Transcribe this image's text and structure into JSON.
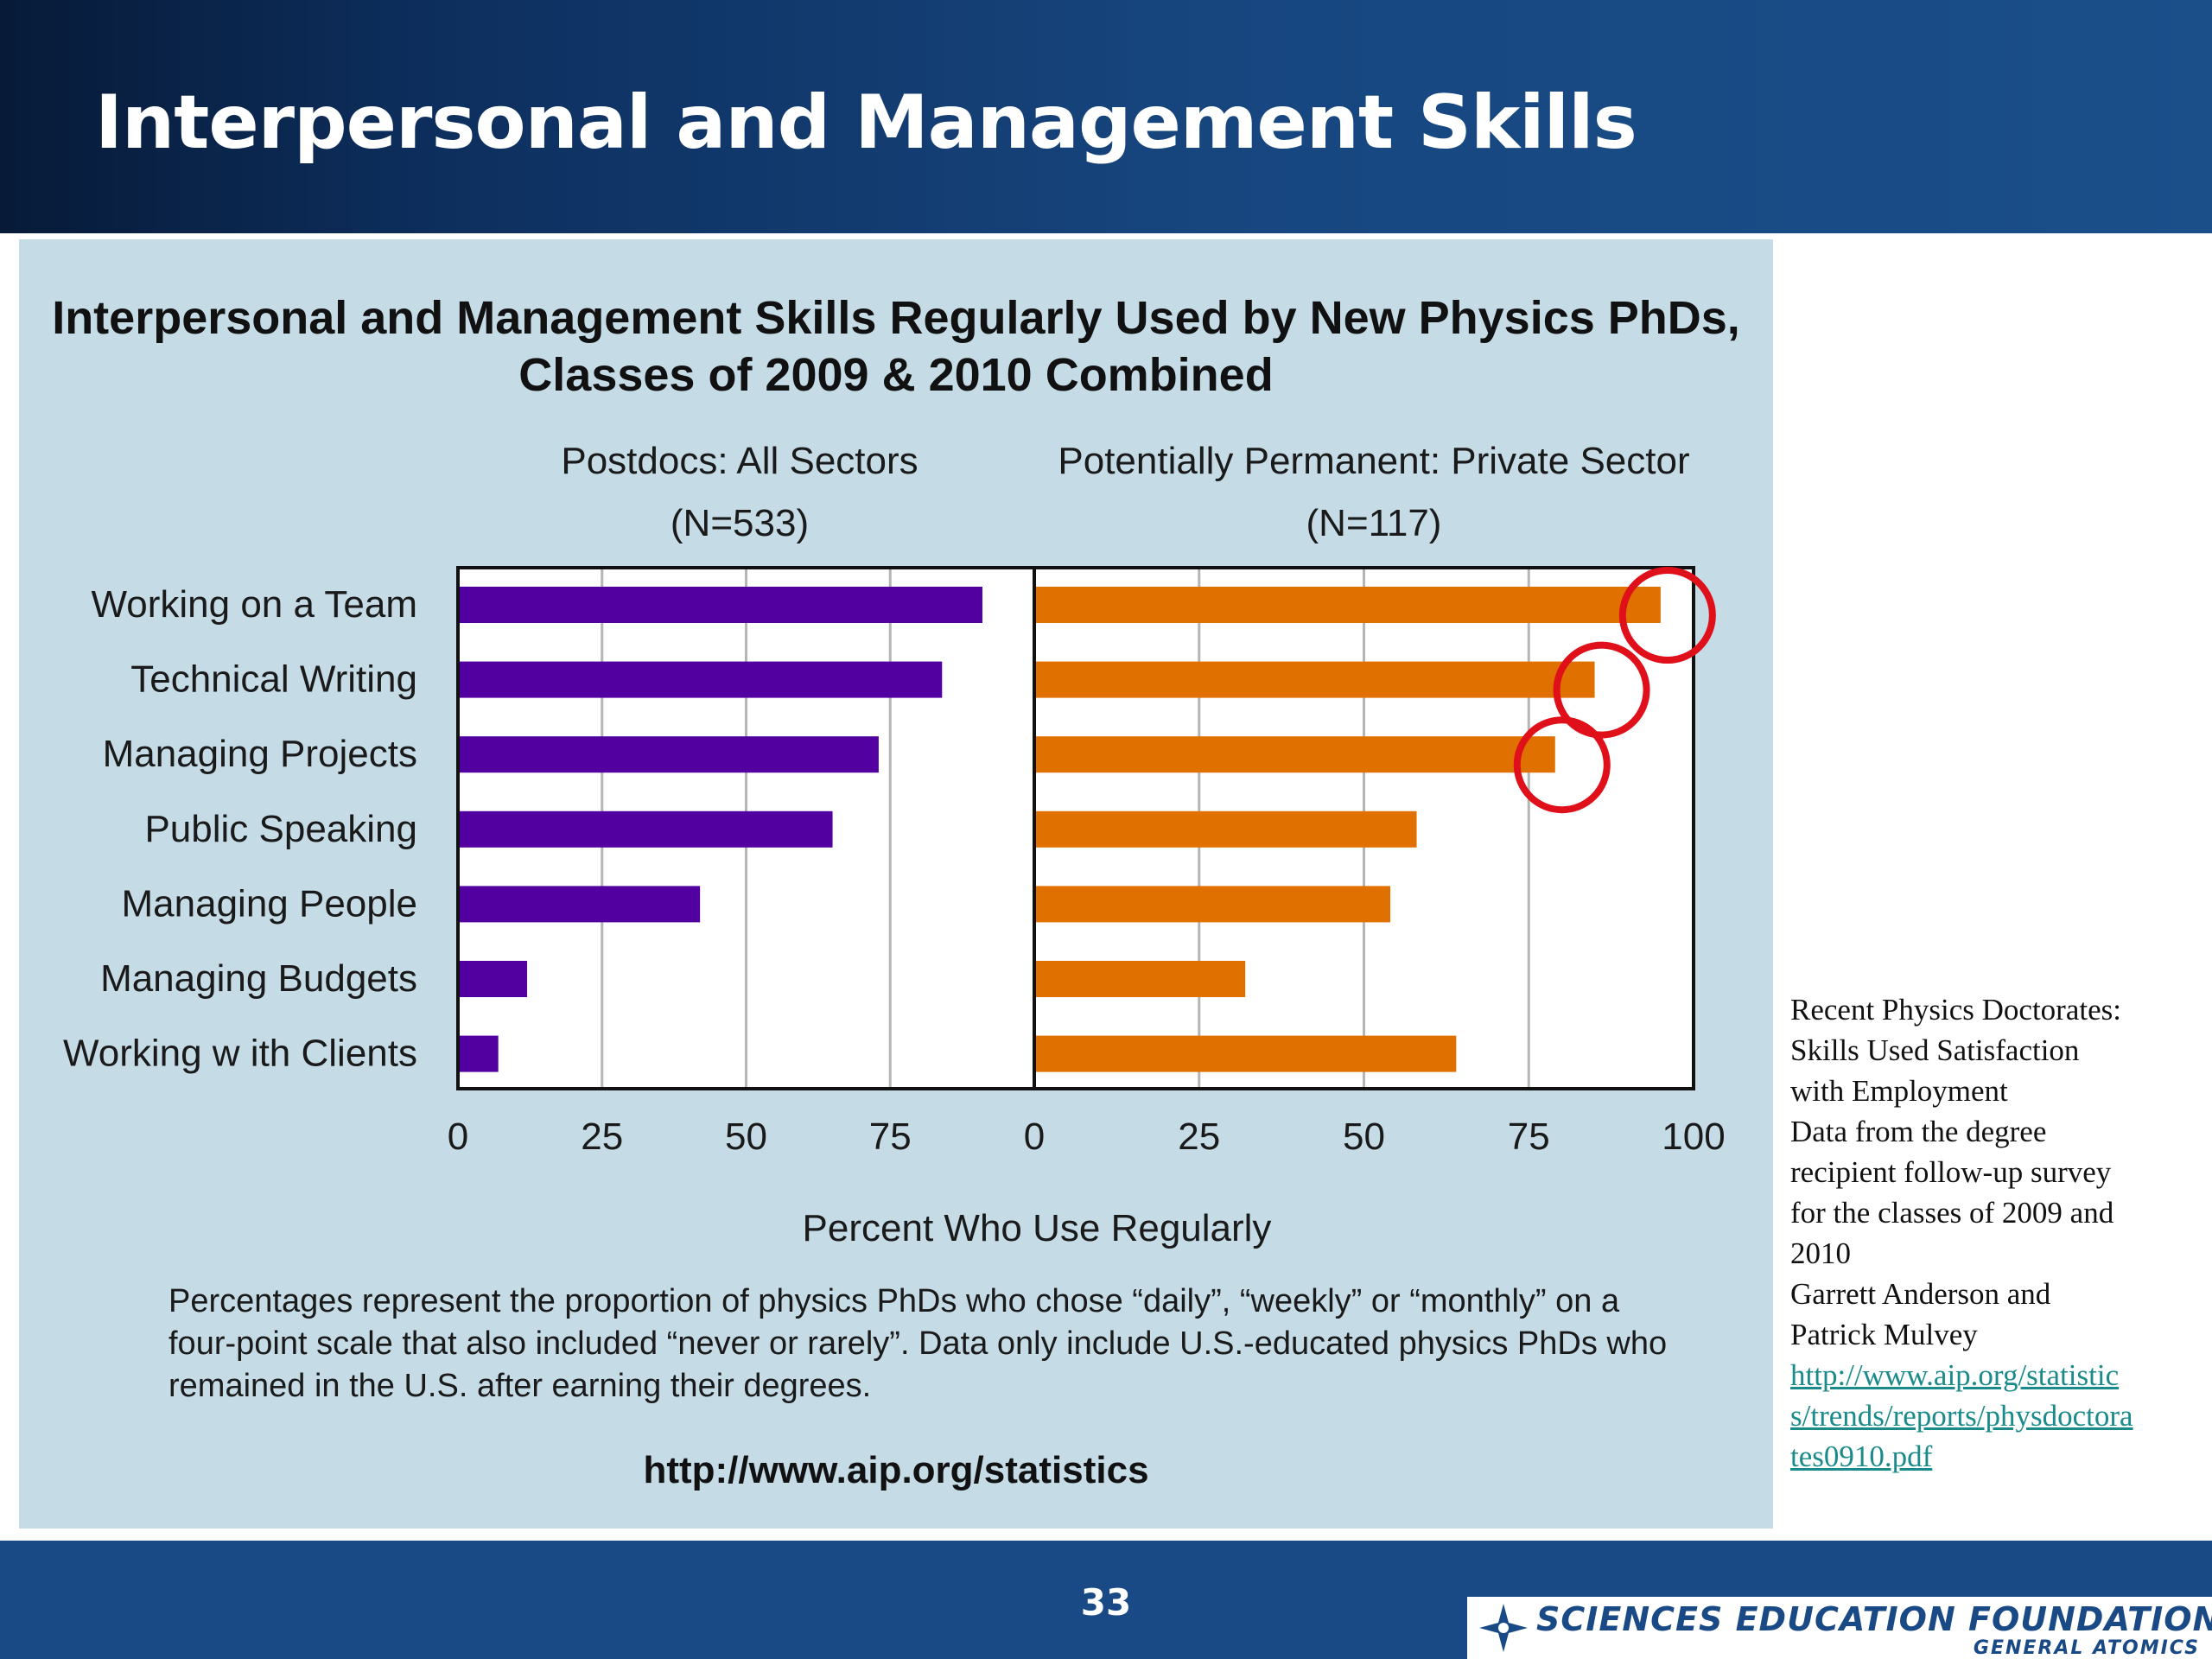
{
  "slide": {
    "title": "Interpersonal and Management Skills",
    "page_number": "33"
  },
  "chart_data": {
    "type": "bar",
    "orientation": "horizontal",
    "title": "Interpersonal and Management Skills Regularly Used by New Physics PhDs, Classes of 2009 & 2010 Combined",
    "xlabel": "Percent Who Use Regularly",
    "categories": [
      "Working on a Team",
      "Technical Writing",
      "Managing Projects",
      "Public Speaking",
      "Managing People",
      "Managing Budgets",
      "Working w ith Clients"
    ],
    "panels": [
      {
        "name": "Postdocs: All Sectors",
        "n_label": "(N=533)",
        "color": "#5200a0",
        "xlim": [
          0,
          100
        ],
        "xticks": [
          0,
          25,
          50,
          75
        ],
        "values": [
          91,
          84,
          73,
          65,
          42,
          12,
          7
        ]
      },
      {
        "name": "Potentially Permanent: Private Sector",
        "n_label": "(N=117)",
        "color": "#e07000",
        "xlim": [
          0,
          100
        ],
        "xticks": [
          0,
          25,
          50,
          75,
          100
        ],
        "values": [
          95,
          85,
          79,
          58,
          54,
          32,
          64
        ]
      }
    ],
    "highlighted_circles": [
      "Working on a Team",
      "Technical Writing",
      "Managing Projects"
    ],
    "highlight_color": "#e0101a",
    "grid": true
  },
  "note": "Percentages represent the proportion of physics PhDs who chose “daily”, “weekly” or “monthly” on a four-point scale that also included “never or rarely”.  Data only include U.S.-educated physics PhDs who remained in the U.S. after earning their degrees.",
  "source_url": "http://www.aip.org/statistics",
  "sidebar": {
    "line1": "Recent Physics Doctorates:  Skills Used   Satisfaction with Employment",
    "line2": "Data from the degree recipient follow-up survey for the classes of 2009 and 2010",
    "line3": "Garrett Anderson and Patrick Mulvey",
    "link": "http://www.aip.org/statistics/trends/reports/physdoctorates0910.pdf"
  },
  "logo": {
    "name": "SCIENCES EDUCATION FOUNDATION",
    "sub": "GENERAL ATOMICS",
    "icon": "star-compass-icon"
  }
}
